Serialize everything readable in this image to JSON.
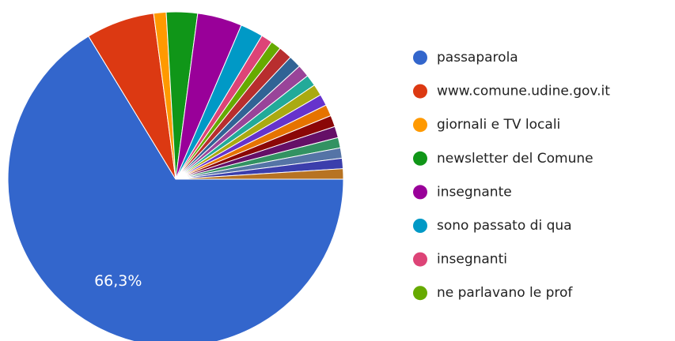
{
  "chart_data": {
    "type": "pie",
    "categories": [
      "passaparola",
      "www.comune.udine.gov.it",
      "giornali e TV locali",
      "newsletter del Comune",
      "insegnante",
      "sono passato di qua",
      "insegnanti",
      "ne parlavano le prof",
      null,
      null,
      null,
      null,
      null,
      null,
      null,
      null,
      null,
      null,
      null,
      null,
      null
    ],
    "values": [
      66.3,
      6.6,
      1.2,
      3.0,
      4.3,
      2.2,
      1.1,
      1.0,
      1.3,
      1.2,
      1.2,
      1.1,
      1.1,
      1.1,
      1.1,
      1.1,
      1.1,
      1.0,
      1.0,
      1.0,
      1.0
    ],
    "value_labels": [
      "66,3%",
      null,
      null,
      null,
      null,
      null,
      null,
      null,
      null,
      null,
      null,
      null,
      null,
      null,
      null,
      null,
      null,
      null,
      null,
      null,
      null
    ],
    "colors": [
      "#3366cc",
      "#dc3912",
      "#ff9900",
      "#109618",
      "#990099",
      "#0099c6",
      "#dd4477",
      "#66aa00",
      "#b82e2e",
      "#316395",
      "#994499",
      "#22aa99",
      "#aaaa11",
      "#6633cc",
      "#e67300",
      "#8b0707",
      "#651067",
      "#329262",
      "#5574a6",
      "#3b3eac",
      "#b77322"
    ]
  }
}
